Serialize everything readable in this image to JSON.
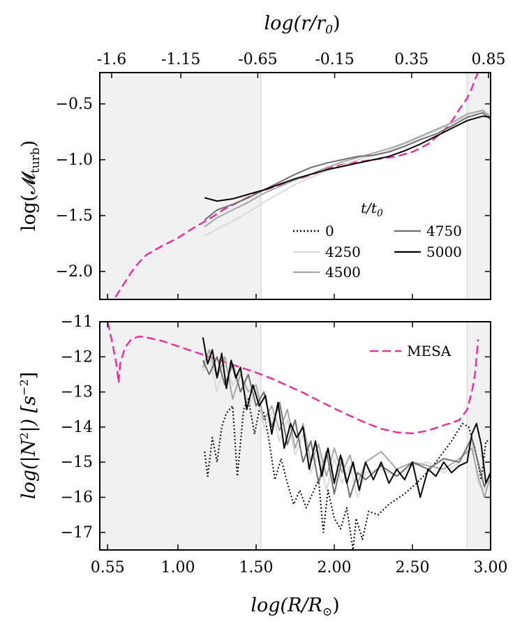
{
  "chart_data": [
    {
      "type": "line",
      "panel": "top",
      "ylabel": "log(𝓜",
      "ylabel_sub": "turb",
      "ylabel_close": ")",
      "top_axis_label": "log(r/r",
      "top_axis_label_sub": "0",
      "top_axis_label_close": ")",
      "top_ticks": [
        "-1.6",
        "-1.15",
        "-0.65",
        "-0.15",
        "0.35",
        "0.85"
      ],
      "top_tick_values": [
        -1.6,
        -1.15,
        -0.65,
        -0.15,
        0.35,
        0.85
      ],
      "xlim": [
        0.5,
        3.0
      ],
      "ylim": [
        -2.25,
        -0.22
      ],
      "yticks": [
        -2.0,
        -1.5,
        -1.0,
        -0.5
      ],
      "ytick_labels": [
        "−2.0",
        "−1.5",
        "−1.0",
        "−0.5"
      ],
      "shaded_x": [
        [
          0.5,
          1.53
        ],
        [
          2.85,
          3.0
        ]
      ],
      "legend_title": "t/t",
      "legend_title_sub": "0",
      "legend": [
        {
          "label": "0",
          "style": "dotted",
          "color": "#000000"
        },
        {
          "label": "4250",
          "style": "solid",
          "color": "#d9d9d9"
        },
        {
          "label": "4500",
          "style": "solid",
          "color": "#a6a6a6"
        },
        {
          "label": "4750",
          "style": "solid",
          "color": "#6e6e6e"
        },
        {
          "label": "5000",
          "style": "solid",
          "color": "#000000"
        }
      ],
      "series": [
        {
          "name": "MESA",
          "color": "#ee2a9c",
          "style": "dashed",
          "x": [
            0.6,
            0.65,
            0.7,
            0.75,
            0.8,
            0.9,
            1.0,
            1.1,
            1.2,
            1.3,
            1.4,
            1.5,
            1.6,
            1.7,
            1.8,
            1.9,
            2.0,
            2.1,
            2.2,
            2.3,
            2.4,
            2.5,
            2.6,
            2.7,
            2.75,
            2.8,
            2.85,
            2.88,
            2.9,
            2.92
          ],
          "y": [
            -2.23,
            -2.12,
            -2.01,
            -1.92,
            -1.85,
            -1.77,
            -1.7,
            -1.61,
            -1.53,
            -1.44,
            -1.37,
            -1.3,
            -1.25,
            -1.2,
            -1.16,
            -1.11,
            -1.06,
            -1.03,
            -1.01,
            -0.99,
            -0.97,
            -0.93,
            -0.86,
            -0.74,
            -0.66,
            -0.55,
            -0.45,
            -0.36,
            -0.28,
            -0.22
          ]
        },
        {
          "name": "4250",
          "color": "#d9d9d9",
          "style": "solid",
          "x": [
            1.17,
            1.25,
            1.35,
            1.45,
            1.55,
            1.65,
            1.75,
            1.85,
            1.95,
            2.05,
            2.15,
            2.25,
            2.35,
            2.45,
            2.55,
            2.65,
            2.75,
            2.85,
            2.95,
            3.0
          ],
          "y": [
            -1.68,
            -1.62,
            -1.55,
            -1.47,
            -1.38,
            -1.3,
            -1.22,
            -1.16,
            -1.1,
            -1.05,
            -1.0,
            -0.96,
            -0.92,
            -0.86,
            -0.8,
            -0.74,
            -0.68,
            -0.6,
            -0.55,
            -0.6
          ]
        },
        {
          "name": "4500",
          "color": "#a6a6a6",
          "style": "solid",
          "x": [
            1.17,
            1.25,
            1.35,
            1.45,
            1.55,
            1.65,
            1.75,
            1.85,
            1.95,
            2.05,
            2.15,
            2.25,
            2.35,
            2.45,
            2.55,
            2.65,
            2.75,
            2.85,
            2.95,
            3.0
          ],
          "y": [
            -1.6,
            -1.52,
            -1.45,
            -1.38,
            -1.3,
            -1.24,
            -1.18,
            -1.13,
            -1.07,
            -1.02,
            -0.98,
            -0.94,
            -0.9,
            -0.85,
            -0.79,
            -0.73,
            -0.67,
            -0.59,
            -0.56,
            -0.62
          ]
        },
        {
          "name": "4750",
          "color": "#6e6e6e",
          "style": "solid",
          "x": [
            1.17,
            1.25,
            1.35,
            1.45,
            1.55,
            1.65,
            1.75,
            1.85,
            1.95,
            2.05,
            2.15,
            2.25,
            2.35,
            2.45,
            2.55,
            2.65,
            2.75,
            2.85,
            2.95,
            3.0
          ],
          "y": [
            -1.54,
            -1.45,
            -1.4,
            -1.34,
            -1.27,
            -1.2,
            -1.13,
            -1.07,
            -1.03,
            -1.0,
            -0.97,
            -0.96,
            -0.93,
            -0.88,
            -0.82,
            -0.77,
            -0.7,
            -0.62,
            -0.58,
            -0.64
          ]
        },
        {
          "name": "5000",
          "color": "#000000",
          "style": "solid",
          "x": [
            1.17,
            1.25,
            1.35,
            1.45,
            1.55,
            1.65,
            1.75,
            1.85,
            1.95,
            2.05,
            2.15,
            2.25,
            2.35,
            2.45,
            2.55,
            2.65,
            2.75,
            2.85,
            2.95,
            3.0
          ],
          "y": [
            -1.34,
            -1.37,
            -1.35,
            -1.31,
            -1.27,
            -1.22,
            -1.17,
            -1.13,
            -1.09,
            -1.06,
            -1.03,
            -1.0,
            -0.97,
            -0.92,
            -0.86,
            -0.79,
            -0.72,
            -0.65,
            -0.61,
            -0.62
          ]
        }
      ]
    },
    {
      "type": "line",
      "panel": "bottom",
      "xlabel": "log(R/R",
      "xlabel_sub": "⊙",
      "xlabel_close": ")",
      "ylabel": "log(|N",
      "ylabel_sup": "2",
      "ylabel_rest": "|) [s",
      "ylabel_sup2": "−2",
      "ylabel_close": "]",
      "xlim": [
        0.5,
        3.0
      ],
      "ylim": [
        -17.5,
        -11.0
      ],
      "xticks": [
        0.55,
        1.0,
        1.5,
        2.0,
        2.5,
        3.0
      ],
      "xtick_labels": [
        "0.55",
        "1.00",
        "1.50",
        "2.00",
        "2.50",
        "3.00"
      ],
      "yticks": [
        -17,
        -16,
        -15,
        -14,
        -13,
        -12,
        -11
      ],
      "ytick_labels": [
        "−17",
        "−16",
        "−15",
        "−14",
        "−13",
        "−12",
        "−11"
      ],
      "shaded_x": [
        [
          0.5,
          1.53
        ],
        [
          2.85,
          3.0
        ]
      ],
      "legend": [
        {
          "label": "MESA",
          "style": "dashed",
          "color": "#ee2a9c"
        }
      ],
      "series": [
        {
          "name": "MESA",
          "color": "#ee2a9c",
          "style": "dashed",
          "x": [
            0.55,
            0.58,
            0.61,
            0.62,
            0.63,
            0.66,
            0.7,
            0.75,
            0.8,
            0.9,
            1.0,
            1.1,
            1.2,
            1.3,
            1.4,
            1.5,
            1.6,
            1.7,
            1.8,
            1.9,
            2.0,
            2.1,
            2.2,
            2.3,
            2.4,
            2.5,
            2.6,
            2.7,
            2.75,
            2.8,
            2.85,
            2.88,
            2.9,
            2.92
          ],
          "y": [
            -11.0,
            -11.6,
            -12.3,
            -12.75,
            -12.2,
            -11.75,
            -11.5,
            -11.42,
            -11.45,
            -11.55,
            -11.7,
            -11.85,
            -12.0,
            -12.15,
            -12.3,
            -12.45,
            -12.62,
            -12.82,
            -13.02,
            -13.25,
            -13.47,
            -13.68,
            -13.88,
            -14.05,
            -14.15,
            -14.18,
            -14.1,
            -13.95,
            -13.88,
            -13.8,
            -13.5,
            -13.0,
            -12.5,
            -11.5
          ]
        },
        {
          "name": "0",
          "color": "#000000",
          "style": "dotted",
          "x": [
            1.17,
            1.19,
            1.22,
            1.25,
            1.28,
            1.31,
            1.35,
            1.38,
            1.42,
            1.45,
            1.49,
            1.52,
            1.55,
            1.58,
            1.62,
            1.66,
            1.7,
            1.74,
            1.78,
            1.82,
            1.86,
            1.9,
            1.93,
            1.96,
            2.0,
            2.04,
            2.08,
            2.12,
            2.14,
            2.18,
            2.22,
            2.28,
            2.35,
            2.45,
            2.55,
            2.65,
            2.75,
            2.82,
            2.86,
            2.9,
            2.94,
            2.97,
            3.0
          ],
          "y": [
            -14.7,
            -15.4,
            -14.3,
            -15.0,
            -14.0,
            -13.6,
            -13.4,
            -15.4,
            -13.5,
            -13.2,
            -14.2,
            -13.5,
            -13.6,
            -14.3,
            -15.5,
            -14.9,
            -15.6,
            -16.2,
            -15.8,
            -16.3,
            -15.9,
            -15.5,
            -17.0,
            -15.8,
            -16.6,
            -16.9,
            -16.3,
            -17.5,
            -16.6,
            -17.2,
            -16.4,
            -16.5,
            -16.2,
            -15.9,
            -15.5,
            -15.0,
            -14.4,
            -13.9,
            -14.0,
            -14.6,
            -15.5,
            -14.4,
            -14.4
          ]
        },
        {
          "name": "4250",
          "color": "#d9d9d9",
          "style": "solid",
          "x": [
            1.16,
            1.2,
            1.25,
            1.3,
            1.35,
            1.4,
            1.45,
            1.5,
            1.55,
            1.6,
            1.65,
            1.7,
            1.75,
            1.8,
            1.85,
            1.9,
            1.95,
            2.0,
            2.05,
            2.1,
            2.15,
            2.2,
            2.3,
            2.4,
            2.5,
            2.6,
            2.7,
            2.8,
            2.88,
            2.92,
            2.96,
            3.0
          ],
          "y": [
            -12.4,
            -12.0,
            -13.0,
            -12.2,
            -12.8,
            -12.4,
            -13.4,
            -13.0,
            -14.0,
            -13.6,
            -14.4,
            -13.8,
            -14.8,
            -14.2,
            -15.3,
            -14.7,
            -15.8,
            -14.9,
            -15.6,
            -15.1,
            -16.0,
            -15.3,
            -15.2,
            -15.4,
            -15.1,
            -15.0,
            -15.3,
            -15.0,
            -14.4,
            -15.6,
            -15.8,
            -15.2
          ]
        },
        {
          "name": "4500",
          "color": "#a6a6a6",
          "style": "solid",
          "x": [
            1.16,
            1.2,
            1.25,
            1.3,
            1.35,
            1.4,
            1.45,
            1.5,
            1.55,
            1.6,
            1.65,
            1.7,
            1.75,
            1.8,
            1.85,
            1.9,
            1.95,
            2.0,
            2.05,
            2.1,
            2.15,
            2.2,
            2.3,
            2.4,
            2.5,
            2.6,
            2.7,
            2.8,
            2.88,
            2.92,
            2.96,
            3.0
          ],
          "y": [
            -12.3,
            -11.8,
            -12.6,
            -12.0,
            -13.2,
            -12.5,
            -13.0,
            -12.8,
            -13.8,
            -13.4,
            -14.1,
            -13.5,
            -14.6,
            -13.9,
            -15.0,
            -14.5,
            -15.4,
            -14.6,
            -15.3,
            -14.8,
            -15.6,
            -15.0,
            -14.7,
            -15.2,
            -15.0,
            -15.1,
            -15.2,
            -14.9,
            -14.6,
            -15.4,
            -16.0,
            -15.4
          ]
        },
        {
          "name": "4750",
          "color": "#6e6e6e",
          "style": "solid",
          "x": [
            1.16,
            1.2,
            1.25,
            1.3,
            1.35,
            1.4,
            1.45,
            1.5,
            1.55,
            1.6,
            1.65,
            1.7,
            1.75,
            1.8,
            1.85,
            1.9,
            1.95,
            2.0,
            2.05,
            2.1,
            2.15,
            2.2,
            2.3,
            2.4,
            2.5,
            2.6,
            2.7,
            2.8,
            2.88,
            2.92,
            2.96,
            3.0
          ],
          "y": [
            -12.1,
            -12.5,
            -12.0,
            -12.8,
            -12.2,
            -13.0,
            -12.5,
            -13.4,
            -13.0,
            -14.0,
            -13.3,
            -14.5,
            -13.8,
            -15.0,
            -14.4,
            -15.6,
            -14.7,
            -15.9,
            -14.9,
            -16.0,
            -15.3,
            -15.5,
            -15.1,
            -15.4,
            -15.0,
            -15.2,
            -14.9,
            -15.0,
            -14.3,
            -15.0,
            -15.7,
            -15.3
          ]
        },
        {
          "name": "5000",
          "color": "#000000",
          "style": "solid",
          "x": [
            1.16,
            1.19,
            1.22,
            1.25,
            1.28,
            1.31,
            1.34,
            1.37,
            1.4,
            1.44,
            1.48,
            1.52,
            1.56,
            1.6,
            1.64,
            1.68,
            1.72,
            1.76,
            1.8,
            1.84,
            1.88,
            1.92,
            1.96,
            2.0,
            2.04,
            2.08,
            2.12,
            2.16,
            2.2,
            2.25,
            2.3,
            2.35,
            2.4,
            2.45,
            2.5,
            2.55,
            2.6,
            2.65,
            2.7,
            2.75,
            2.8,
            2.85,
            2.88,
            2.91,
            2.94,
            2.97,
            3.0
          ],
          "y": [
            -11.45,
            -12.2,
            -11.8,
            -12.6,
            -11.9,
            -12.9,
            -12.1,
            -12.6,
            -12.3,
            -13.5,
            -12.8,
            -13.4,
            -13.1,
            -14.2,
            -13.3,
            -14.6,
            -13.9,
            -14.3,
            -14.0,
            -15.2,
            -14.4,
            -15.4,
            -14.6,
            -15.6,
            -14.8,
            -15.6,
            -15.0,
            -15.8,
            -15.0,
            -15.5,
            -15.0,
            -15.6,
            -15.2,
            -15.5,
            -15.0,
            -16.0,
            -15.2,
            -15.4,
            -15.0,
            -15.3,
            -15.1,
            -15.0,
            -14.2,
            -13.9,
            -14.5,
            -15.6,
            -15.3
          ]
        }
      ]
    }
  ]
}
